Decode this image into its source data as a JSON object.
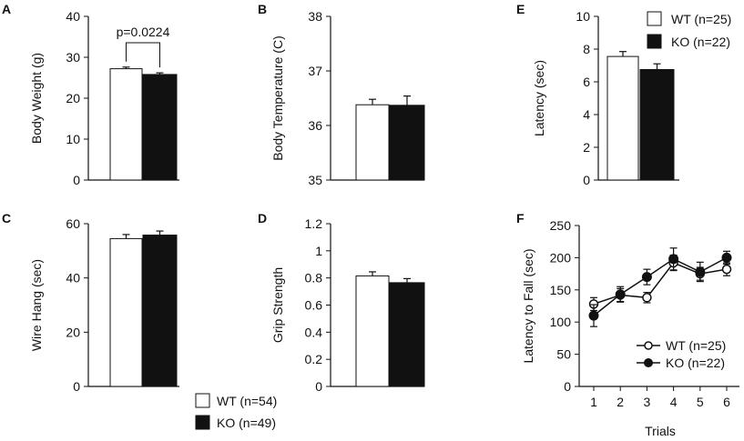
{
  "chart_data": [
    {
      "panel": "A",
      "type": "bar",
      "ylabel": "Body Weight (g)",
      "ylim": [
        0,
        40
      ],
      "yticks": [
        "0",
        "10",
        "20",
        "30",
        "40"
      ],
      "series": [
        {
          "name": "WT (n=54)",
          "value": 27.2,
          "error": 0.4,
          "fill": "#ffffff"
        },
        {
          "name": "KO (n=49)",
          "value": 25.8,
          "error": 0.4,
          "fill": "#111111"
        }
      ],
      "annotation": "p=0.0224"
    },
    {
      "panel": "B",
      "type": "bar",
      "ylabel": "Body Temperature (C)",
      "ylim": [
        35,
        38
      ],
      "yticks": [
        "35",
        "36",
        "37",
        "38"
      ],
      "series": [
        {
          "name": "WT (n=54)",
          "value": 36.38,
          "error": 0.1,
          "fill": "#ffffff"
        },
        {
          "name": "KO (n=49)",
          "value": 36.37,
          "error": 0.17,
          "fill": "#111111"
        }
      ]
    },
    {
      "panel": "C",
      "type": "bar",
      "ylabel": "Wire Hang (sec)",
      "ylim": [
        0,
        60
      ],
      "yticks": [
        "0",
        "20",
        "40",
        "60"
      ],
      "series": [
        {
          "name": "WT (n=54)",
          "value": 54.5,
          "error": 1.5,
          "fill": "#ffffff"
        },
        {
          "name": "KO (n=49)",
          "value": 55.8,
          "error": 1.5,
          "fill": "#111111"
        }
      ]
    },
    {
      "panel": "D",
      "type": "bar",
      "ylabel": "Grip Strength",
      "ylim": [
        0,
        1.2
      ],
      "yticks": [
        "0",
        "0.2",
        "0.4",
        "0.6",
        "0.8",
        "1",
        "1.2"
      ],
      "series": [
        {
          "name": "WT (n=54)",
          "value": 0.815,
          "error": 0.03,
          "fill": "#ffffff"
        },
        {
          "name": "KO (n=49)",
          "value": 0.765,
          "error": 0.03,
          "fill": "#111111"
        }
      ]
    },
    {
      "panel": "E",
      "type": "bar",
      "ylabel": "Latency (sec)",
      "ylim": [
        0,
        10
      ],
      "yticks": [
        "0",
        "2",
        "4",
        "6",
        "8",
        "10"
      ],
      "series": [
        {
          "name": "WT (n=25)",
          "value": 7.55,
          "error": 0.3,
          "fill": "#ffffff"
        },
        {
          "name": "KO (n=22)",
          "value": 6.75,
          "error": 0.35,
          "fill": "#111111"
        }
      ]
    },
    {
      "panel": "F",
      "type": "line",
      "ylabel": "Latency to Fall (sec)",
      "xlabel": "Trials",
      "ylim": [
        0,
        250
      ],
      "yticks": [
        "0",
        "50",
        "100",
        "150",
        "200",
        "250"
      ],
      "x": [
        1,
        2,
        3,
        4,
        5,
        6
      ],
      "xticks": [
        "1",
        "2",
        "3",
        "4",
        "5",
        "6"
      ],
      "series": [
        {
          "name": "WT (n=25)",
          "marker": "open-circle",
          "values": [
            128,
            142,
            138,
            192,
            175,
            182
          ],
          "errors": [
            10,
            10,
            8,
            12,
            10,
            10
          ]
        },
        {
          "name": "KO (n=22)",
          "marker": "filled-circle",
          "values": [
            110,
            143,
            170,
            198,
            178,
            200
          ],
          "errors": [
            17,
            12,
            12,
            17,
            15,
            10
          ]
        }
      ]
    }
  ],
  "legends": {
    "left": [
      {
        "label": "WT (n=54)",
        "fill": "#ffffff"
      },
      {
        "label": "KO (n=49)",
        "fill": "#111111"
      }
    ],
    "top_right": [
      {
        "label": "WT (n=25)",
        "fill": "#ffffff"
      },
      {
        "label": "KO (n=22)",
        "fill": "#111111"
      }
    ],
    "bottom_right": [
      {
        "label": "WT (n=25)",
        "marker": "open-circle"
      },
      {
        "label": "KO (n=22)",
        "marker": "filled-circle"
      }
    ]
  }
}
